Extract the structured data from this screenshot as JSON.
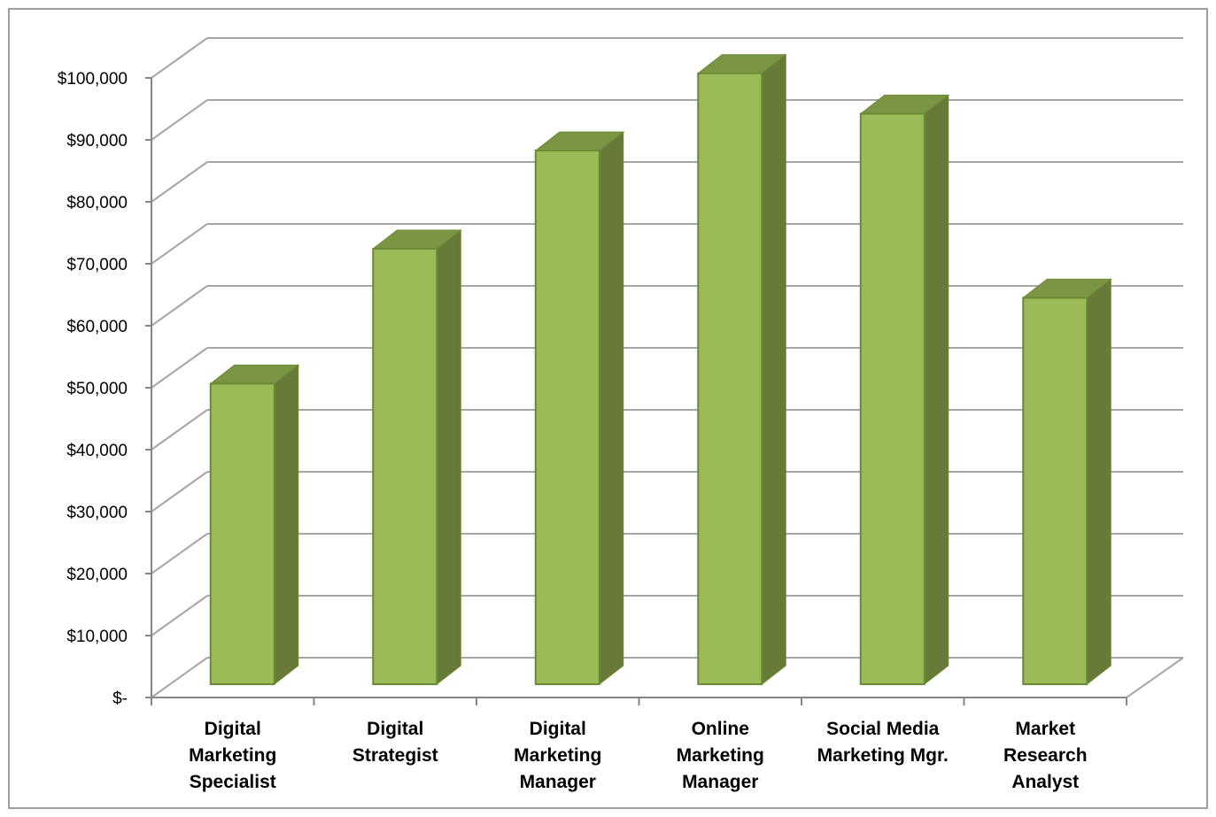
{
  "chart_data": {
    "type": "bar",
    "style": "3d-column",
    "title": "",
    "xlabel": "",
    "ylabel": "",
    "categories": [
      "Digital Marketing Specialist",
      "Digital Strategist",
      "Digital Marketing Manager",
      "Online Marketing Manager",
      "Social Media Marketing Mgr.",
      "Market Research Analyst"
    ],
    "category_lines": [
      [
        "Digital",
        "Marketing",
        "Specialist"
      ],
      [
        "Digital",
        "Strategist"
      ],
      [
        "Digital",
        "Marketing",
        "Manager"
      ],
      [
        "Online",
        "Marketing",
        "Manager"
      ],
      [
        "Social Media",
        "Marketing Mgr."
      ],
      [
        "Market",
        "Research",
        "Analyst"
      ]
    ],
    "values": [
      49000,
      71000,
      87000,
      99600,
      93000,
      63000
    ],
    "ylim": [
      0,
      100000
    ],
    "y_ticks": [
      0,
      10000,
      20000,
      30000,
      40000,
      50000,
      60000,
      70000,
      80000,
      90000,
      100000
    ],
    "y_tick_labels": [
      "$-",
      "$10,000",
      "$20,000",
      "$30,000",
      "$40,000",
      "$50,000",
      "$60,000",
      "$70,000",
      "$80,000",
      "$90,000",
      "$100,000"
    ],
    "grid": true,
    "legend": "none",
    "colors": {
      "bar_front": "#9bbb59",
      "bar_side": "#677a38",
      "bar_top": "#7a9645",
      "bar_edge": "#6b8a35",
      "grid": "#a6a6a6",
      "axis": "#868686",
      "frame": "#808080"
    }
  }
}
